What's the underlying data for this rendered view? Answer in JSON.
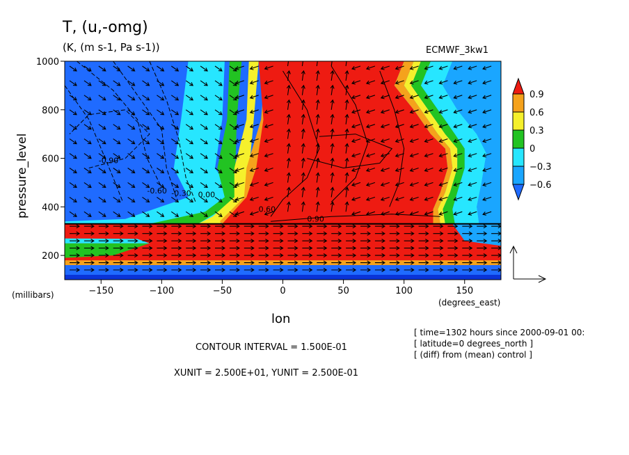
{
  "chart_data": {
    "type": "heatmap",
    "title": "T, (u,-omg)",
    "subtitle": "(K, (m s-1, Pa s-1))",
    "dataset": "ECMWF_3kw1",
    "xlabel": "lon",
    "x_units": "(degrees_east)",
    "ylabel": "pressure_level",
    "y_units": "(millibars)",
    "xlim": [
      -180,
      180
    ],
    "ylim": [
      1000,
      100
    ],
    "x_ticks": [
      -150,
      -100,
      -50,
      0,
      50,
      100,
      150
    ],
    "x_tick_labels": [
      "−150",
      "−100",
      "−50",
      "0",
      "50",
      "100",
      "150"
    ],
    "y_ticks": [
      1000,
      800,
      600,
      400,
      200
    ],
    "y_tick_labels": [
      "1000",
      "800",
      "600",
      "400",
      "200"
    ],
    "colorbar": {
      "levels": [
        -0.6,
        -0.3,
        0,
        0.3,
        0.6,
        0.9
      ],
      "labels": [
        "−0.6",
        "−0.3",
        "0",
        "0.3",
        "0.6",
        "0.9"
      ],
      "colors": [
        "#1f6bff",
        "#1aa6ff",
        "#27e6ff",
        "#22c322",
        "#f5f02c",
        "#f5a21c",
        "#ee1b12"
      ]
    },
    "colors": {
      "deep_blue": "#0a34d8",
      "blue": "#1f6bff",
      "mid_blue": "#1aa6ff",
      "cyan": "#27e6ff",
      "green": "#22c322",
      "yellow": "#f5f02c",
      "orange": "#f5a21c",
      "red": "#ee1b12"
    },
    "contour_labels": [
      "-0.60",
      "-0.30",
      "0.00",
      "0.60",
      "-0.90",
      "0.90"
    ],
    "contour_interval_text": "CONTOUR INTERVAL = 1.500E-01",
    "units_text": "XUNIT = 2.500E+01, YUNIT = 2.500E-01",
    "info_lines": [
      "[ time=1302 hours since 2000-09-01 00:",
      "[ latitude=0 degrees_north ]",
      "[ (diff) from (mean) control ]"
    ]
  }
}
